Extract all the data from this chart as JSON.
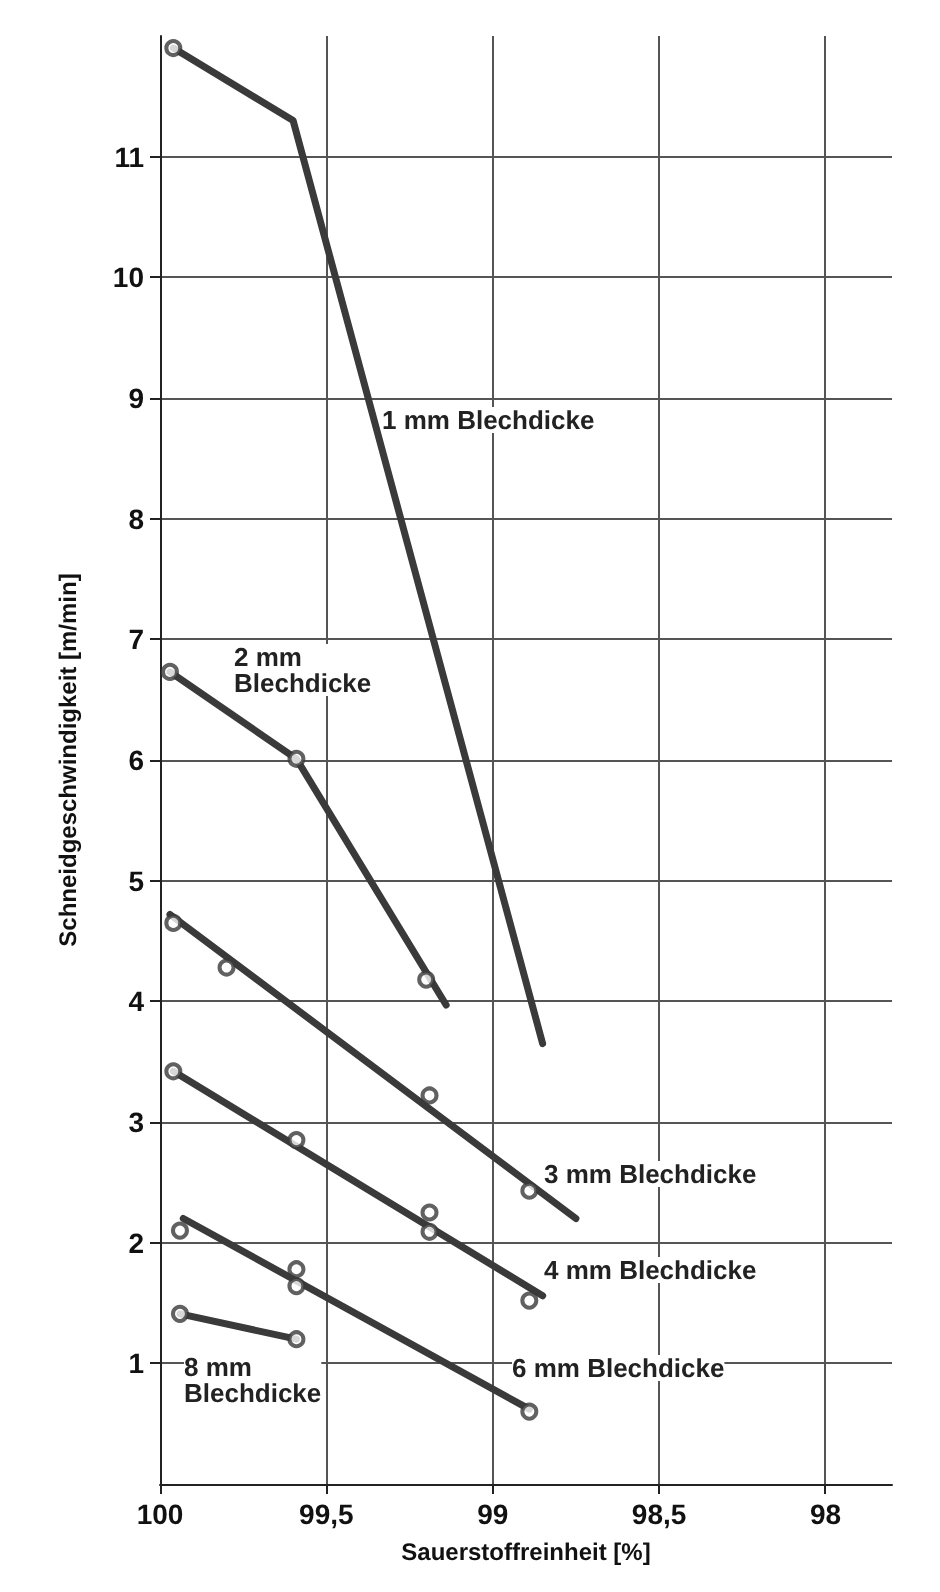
{
  "chart_data": {
    "type": "line",
    "xlabel": "Sauerstoffreinheit [%]",
    "ylabel": "Schneidgeschwindigkeit [m/min]",
    "xlim": [
      100,
      97.8
    ],
    "xticks": [
      100,
      {
        "value": 99.5,
        "label": "99,5"
      },
      99,
      {
        "value": 98.5,
        "label": "98,5"
      },
      98
    ],
    "ylim": [
      0,
      12
    ],
    "yticks": [
      1,
      2,
      3,
      4,
      5,
      6,
      7,
      8,
      9,
      10,
      11
    ],
    "grid": true,
    "line_style": "solid",
    "series": [
      {
        "color": "#3a3a3a",
        "x": [
          99.96,
          99.6,
          98.85
        ],
        "values": [
          11.9,
          11.3,
          3.65
        ]
      },
      {
        "color": "#3a3a3a",
        "x": [
          99.97,
          99.59,
          99.14
        ],
        "values": [
          6.73,
          6.01,
          3.97
        ]
      },
      {
        "color": "#3a3a3a",
        "x": [
          99.97,
          98.75
        ],
        "values": [
          4.72,
          2.2
        ]
      },
      {
        "color": "#3a3a3a",
        "x": [
          99.96,
          98.85
        ],
        "values": [
          3.42,
          1.56
        ]
      },
      {
        "color": "#3a3a3a",
        "x": [
          99.93,
          98.89
        ],
        "values": [
          2.2,
          0.62
        ]
      },
      {
        "color": "#3a3a3a",
        "x": [
          99.94,
          99.59
        ],
        "values": [
          1.41,
          1.2
        ]
      },
      {
        "type": "scatter",
        "marker": "circle",
        "color": "#3a3a3a",
        "x": [
          99.96,
          99.97,
          99.59,
          99.2
        ],
        "values": [
          11.9,
          6.73,
          6.01,
          4.18
        ]
      },
      {
        "type": "scatter",
        "marker": "circle",
        "color": "#3a3a3a",
        "x": [
          99.96,
          99.8,
          99.19,
          98.89
        ],
        "values": [
          4.65,
          4.28,
          3.22,
          2.43
        ]
      },
      {
        "type": "scatter",
        "marker": "circle",
        "color": "#3a3a3a",
        "x": [
          99.96,
          99.59,
          99.19,
          99.19,
          98.89
        ],
        "values": [
          3.42,
          2.85,
          2.25,
          2.09,
          1.52
        ]
      },
      {
        "type": "scatter",
        "marker": "circle",
        "color": "#3a3a3a",
        "x": [
          99.94,
          99.59,
          99.59,
          98.89,
          99.94,
          99.59
        ],
        "values": [
          2.1,
          1.78,
          1.64,
          0.6,
          1.41,
          1.2
        ]
      }
    ],
    "annotations": [
      "1 mm Blechdicke",
      "2 mm\nBlechdicke",
      "3 mm Blechdicke",
      "4 mm Blechdicke",
      "6 mm Blechdicke",
      "8 mm\nBlechdicke"
    ]
  }
}
